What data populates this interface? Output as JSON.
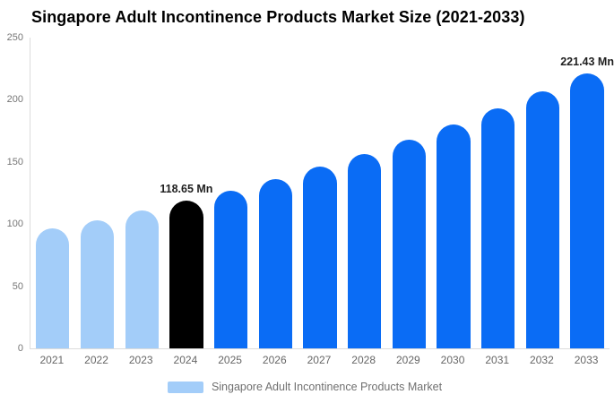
{
  "chart_data": {
    "type": "bar",
    "title": "Singapore Adult Incontinence Products Market Size (2021-2033)",
    "categories": [
      "2021",
      "2022",
      "2023",
      "2024",
      "2025",
      "2026",
      "2027",
      "2028",
      "2029",
      "2030",
      "2031",
      "2032",
      "2033"
    ],
    "values": [
      96.37,
      103.29,
      110.7,
      118.65,
      127.17,
      136.3,
      146.09,
      156.58,
      167.82,
      179.87,
      192.79,
      206.63,
      221.43
    ],
    "unit": "Mn",
    "bar_colors": [
      "#A3CDF9",
      "#A3CDF9",
      "#A3CDF9",
      "#000000",
      "#0A6CF5",
      "#0A6CF5",
      "#0A6CF5",
      "#0A6CF5",
      "#0A6CF5",
      "#0A6CF5",
      "#0A6CF5",
      "#0A6CF5",
      "#0A6CF5"
    ],
    "annotations": [
      {
        "category": "2024",
        "text": "118.65 Mn"
      },
      {
        "category": "2033",
        "text": "221.43 Mn"
      }
    ],
    "xlabel": "",
    "ylabel": "",
    "ylim": [
      0,
      250
    ],
    "yticks": [
      0,
      50,
      100,
      150,
      200,
      250
    ],
    "grid": false,
    "legend_position": "bottom",
    "legend": {
      "label": "Singapore Adult Incontinence Products Market",
      "swatch_color": "#A3CDF9"
    },
    "colors": {
      "light_blue": "#A3CDF9",
      "bright_blue": "#0A6CF5",
      "highlight_black": "#000000",
      "axis_line": "#dcdcdc",
      "tick_text": "#757575",
      "x_tick_text": "#666666",
      "legend_text": "#707070",
      "title_text": "#000000"
    }
  }
}
